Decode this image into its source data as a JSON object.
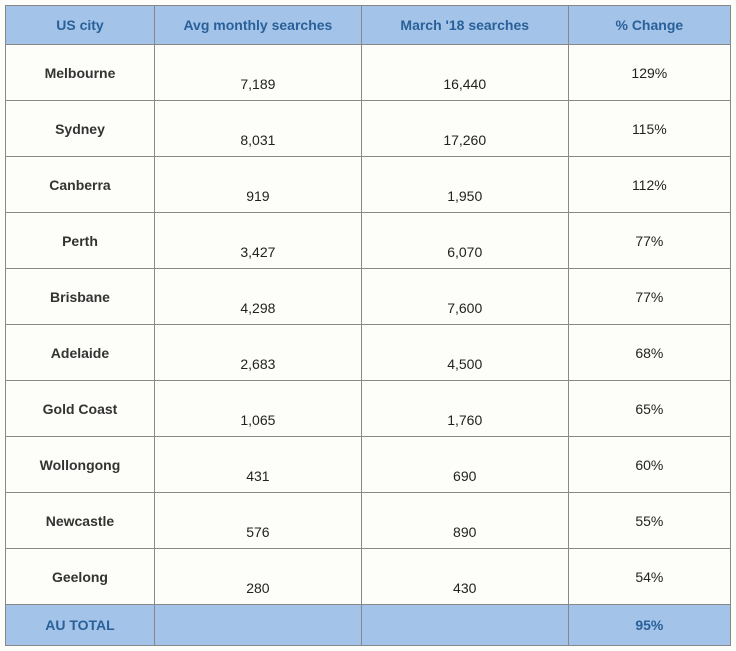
{
  "table": {
    "columns": [
      "US city",
      "Avg monthly searches",
      "March '18 searches",
      "% Change"
    ],
    "rows": [
      {
        "city": "Melbourne",
        "avg": "7,189",
        "mar": "16,440",
        "pct": "129%"
      },
      {
        "city": "Sydney",
        "avg": "8,031",
        "mar": "17,260",
        "pct": "115%"
      },
      {
        "city": "Canberra",
        "avg": "919",
        "mar": "1,950",
        "pct": "112%"
      },
      {
        "city": "Perth",
        "avg": "3,427",
        "mar": "6,070",
        "pct": "77%"
      },
      {
        "city": "Brisbane",
        "avg": "4,298",
        "mar": "7,600",
        "pct": "77%"
      },
      {
        "city": "Adelaide",
        "avg": "2,683",
        "mar": "4,500",
        "pct": "68%"
      },
      {
        "city": "Gold Coast",
        "avg": "1,065",
        "mar": "1,760",
        "pct": "65%"
      },
      {
        "city": "Wollongong",
        "avg": "431",
        "mar": "690",
        "pct": "60%"
      },
      {
        "city": "Newcastle",
        "avg": "576",
        "mar": "890",
        "pct": "55%"
      },
      {
        "city": "Geelong",
        "avg": "280",
        "mar": "430",
        "pct": "54%"
      }
    ],
    "total": {
      "label": "AU TOTAL",
      "avg": "",
      "mar": "",
      "pct": "95%"
    },
    "header_bg": "#a3c4e8",
    "header_color": "#2a6099",
    "border_color": "#888888"
  }
}
